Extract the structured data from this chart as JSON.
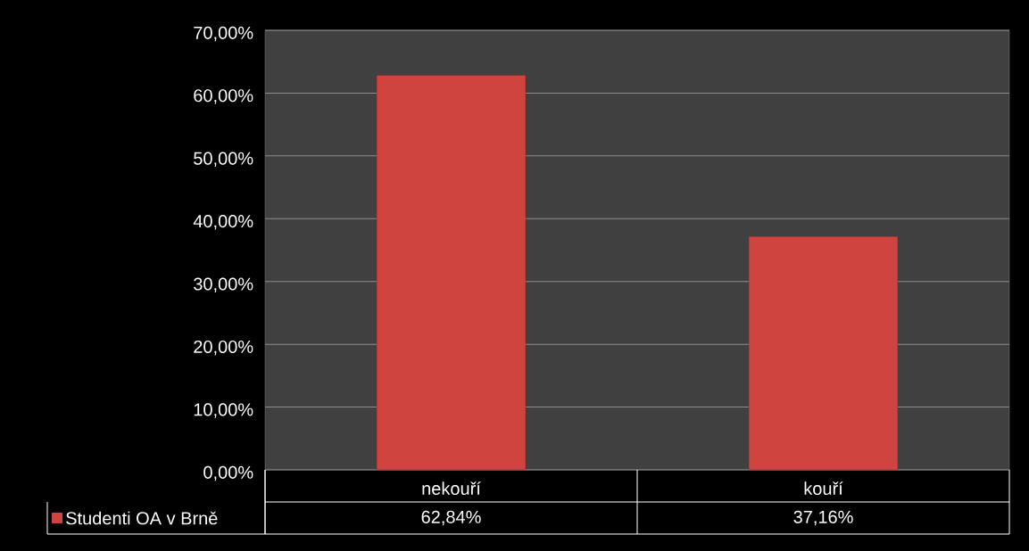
{
  "chart_data": {
    "type": "bar",
    "categories": [
      "nekouří",
      "kouří"
    ],
    "series": [
      {
        "name": "Studenti OA v Brně",
        "color": "#d04440",
        "values": [
          62.84,
          37.16
        ],
        "value_labels": [
          "62,84%",
          "37,16%"
        ]
      }
    ],
    "ylim": [
      0,
      70
    ],
    "yticks": [
      {
        "value": 0,
        "label": "0,00%"
      },
      {
        "value": 10,
        "label": "10,00%"
      },
      {
        "value": 20,
        "label": "20,00%"
      },
      {
        "value": 30,
        "label": "30,00%"
      },
      {
        "value": 40,
        "label": "40,00%"
      },
      {
        "value": 50,
        "label": "50,00%"
      },
      {
        "value": 60,
        "label": "60,00%"
      },
      {
        "value": 70,
        "label": "70,00%"
      }
    ],
    "grid": "y",
    "legend": "bottom left"
  }
}
